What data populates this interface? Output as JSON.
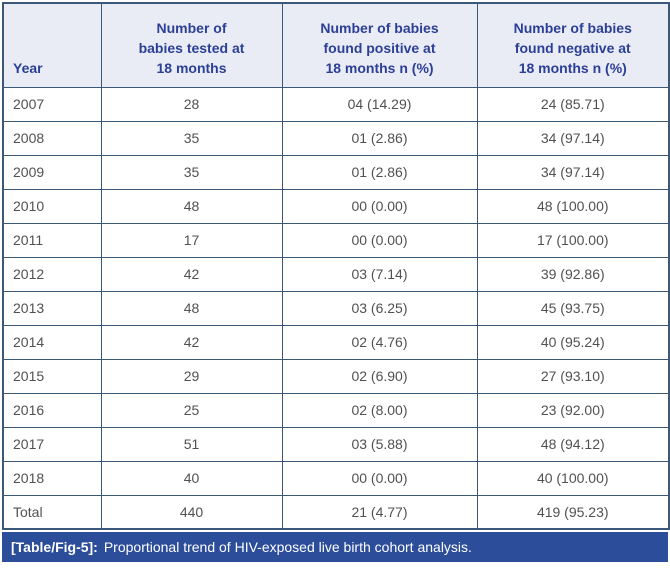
{
  "table": {
    "header": {
      "col_year": "Year",
      "col_tested": "Number of\nbabies tested at\n18 months",
      "col_positive": "Number of babies\nfound positive at\n18 months n (%)",
      "col_negative": "Number of babies\nfound negative at\n18 months n (%)"
    },
    "rows": [
      {
        "year": "2007",
        "tested": "28",
        "positive": "04 (14.29)",
        "negative": "24 (85.71)"
      },
      {
        "year": "2008",
        "tested": "35",
        "positive": "01 (2.86)",
        "negative": "34 (97.14)"
      },
      {
        "year": "2009",
        "tested": "35",
        "positive": "01 (2.86)",
        "negative": "34 (97.14)"
      },
      {
        "year": "2010",
        "tested": "48",
        "positive": "00 (0.00)",
        "negative": "48 (100.00)"
      },
      {
        "year": "2011",
        "tested": "17",
        "positive": "00 (0.00)",
        "negative": "17 (100.00)"
      },
      {
        "year": "2012",
        "tested": "42",
        "positive": "03 (7.14)",
        "negative": "39 (92.86)"
      },
      {
        "year": "2013",
        "tested": "48",
        "positive": "03 (6.25)",
        "negative": "45 (93.75)"
      },
      {
        "year": "2014",
        "tested": "42",
        "positive": "02 (4.76)",
        "negative": "40 (95.24)"
      },
      {
        "year": "2015",
        "tested": "29",
        "positive": "02 (6.90)",
        "negative": "27 (93.10)"
      },
      {
        "year": "2016",
        "tested": "25",
        "positive": "02 (8.00)",
        "negative": "23 (92.00)"
      },
      {
        "year": "2017",
        "tested": "51",
        "positive": "03 (5.88)",
        "negative": "48 (94.12)"
      },
      {
        "year": "2018",
        "tested": "40",
        "positive": "00 (0.00)",
        "negative": "40 (100.00)"
      },
      {
        "year": "Total",
        "tested": "440",
        "positive": "21 (4.77)",
        "negative": "419 (95.23)"
      }
    ]
  },
  "caption": {
    "label": "[Table/Fig-5]:",
    "text": "Proportional trend of HIV-exposed live birth cohort analysis."
  },
  "colors": {
    "header_bg": "#eaecf5",
    "header_text": "#2b3f97",
    "border": "#3b5878",
    "body_text": "#515154",
    "caption_bg": "#2b4d9a",
    "caption_text": "#ffffff"
  },
  "chart_data": {
    "type": "table",
    "title": "[Table/Fig-5]: Proportional trend of HIV-exposed live birth cohort analysis.",
    "columns": [
      "Year",
      "Number of babies tested at 18 months",
      "Number of babies found positive at 18 months n (%)",
      "Number of babies found negative at 18 months n (%)"
    ],
    "rows": [
      [
        "2007",
        "28",
        "04 (14.29)",
        "24 (85.71)"
      ],
      [
        "2008",
        "35",
        "01 (2.86)",
        "34 (97.14)"
      ],
      [
        "2009",
        "35",
        "01 (2.86)",
        "34 (97.14)"
      ],
      [
        "2010",
        "48",
        "00 (0.00)",
        "48 (100.00)"
      ],
      [
        "2011",
        "17",
        "00 (0.00)",
        "17 (100.00)"
      ],
      [
        "2012",
        "42",
        "03 (7.14)",
        "39 (92.86)"
      ],
      [
        "2013",
        "48",
        "03 (6.25)",
        "45 (93.75)"
      ],
      [
        "2014",
        "42",
        "02 (4.76)",
        "40 (95.24)"
      ],
      [
        "2015",
        "29",
        "02 (6.90)",
        "27 (93.10)"
      ],
      [
        "2016",
        "25",
        "02 (8.00)",
        "23 (92.00)"
      ],
      [
        "2017",
        "51",
        "03 (5.88)",
        "48 (94.12)"
      ],
      [
        "2018",
        "40",
        "00 (0.00)",
        "40 (100.00)"
      ],
      [
        "Total",
        "440",
        "21 (4.77)",
        "419 (95.23)"
      ]
    ]
  }
}
